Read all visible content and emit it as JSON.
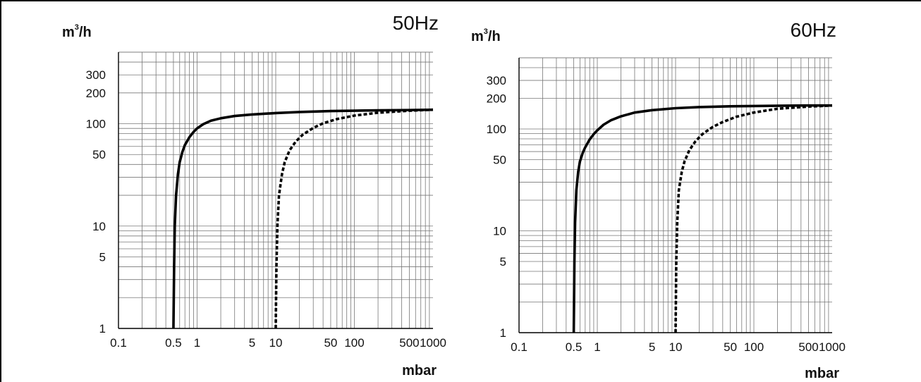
{
  "chart_data": [
    {
      "type": "line",
      "title": "50Hz",
      "ylabel": "m",
      "ylabel_exponent": "3",
      "ylabel_suffix": "/h",
      "xlabel": "mbar",
      "xscale": "log",
      "yscale": "log",
      "xlim": [
        0.1,
        1000
      ],
      "ylim": [
        1,
        500
      ],
      "grid": true,
      "x_ticks": [
        "0.1",
        "0.5",
        "1",
        "5",
        "10",
        "50",
        "100",
        "500",
        "1000"
      ],
      "y_ticks": [
        "1",
        "5",
        "10",
        "50",
        "100",
        "200",
        "300"
      ],
      "series": [
        {
          "style": "solid",
          "x": [
            0.5,
            0.51,
            0.52,
            0.54,
            0.57,
            0.6,
            0.65,
            0.7,
            0.8,
            0.9,
            1.0,
            1.2,
            1.5,
            2,
            3,
            5,
            10,
            20,
            50,
            100,
            200,
            500,
            1000
          ],
          "y": [
            1,
            4,
            10,
            20,
            32,
            42,
            53,
            62,
            74,
            83,
            90,
            99,
            107,
            113,
            119,
            123,
            127,
            130,
            133,
            134,
            135,
            136,
            137
          ]
        },
        {
          "style": "dashed",
          "x": [
            10,
            10.2,
            10.5,
            11,
            12,
            13,
            15,
            18,
            22,
            30,
            40,
            60,
            100,
            200,
            500,
            1000
          ],
          "y": [
            1,
            4,
            10,
            20,
            32,
            42,
            55,
            67,
            78,
            91,
            101,
            111,
            120,
            128,
            134,
            137
          ]
        }
      ]
    },
    {
      "type": "line",
      "title": "60Hz",
      "ylabel": "m",
      "ylabel_exponent": "3",
      "ylabel_suffix": "/h",
      "xlabel": "mbar",
      "xscale": "log",
      "yscale": "log",
      "xlim": [
        0.1,
        1000
      ],
      "ylim": [
        1,
        500
      ],
      "grid": true,
      "x_ticks": [
        "0.1",
        "0.5",
        "1",
        "5",
        "10",
        "50",
        "100",
        "500",
        "1000"
      ],
      "y_ticks": [
        "1",
        "5",
        "10",
        "50",
        "100",
        "200",
        "300"
      ],
      "series": [
        {
          "style": "solid",
          "x": [
            0.5,
            0.51,
            0.52,
            0.54,
            0.57,
            0.6,
            0.65,
            0.7,
            0.8,
            0.9,
            1.0,
            1.2,
            1.5,
            2,
            3,
            5,
            10,
            20,
            50,
            100,
            200,
            500,
            1000
          ],
          "y": [
            1,
            5,
            12,
            25,
            38,
            48,
            58,
            66,
            79,
            89,
            97,
            110,
            122,
            133,
            145,
            153,
            160,
            164,
            167,
            168,
            169,
            170,
            170
          ]
        },
        {
          "style": "dashed",
          "x": [
            10,
            10.2,
            10.5,
            11,
            12,
            13,
            15,
            18,
            22,
            30,
            40,
            60,
            100,
            200,
            500,
            1000
          ],
          "y": [
            1,
            5,
            12,
            25,
            38,
            48,
            62,
            76,
            89,
            105,
            117,
            132,
            145,
            158,
            166,
            170
          ]
        }
      ]
    }
  ]
}
